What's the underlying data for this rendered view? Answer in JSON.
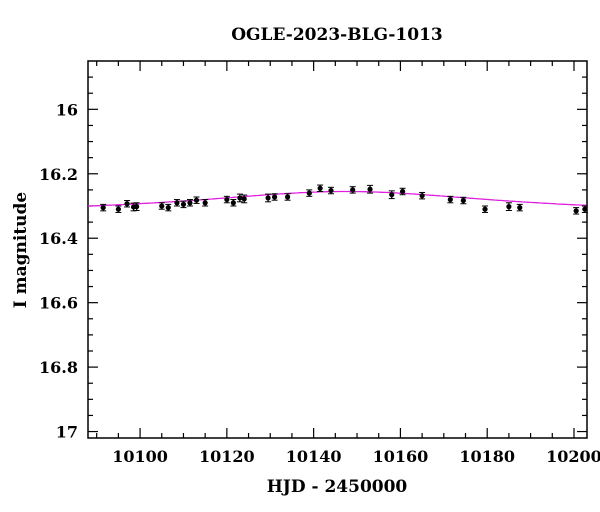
{
  "chart_data": {
    "type": "scatter",
    "title": "OGLE-2023-BLG-1013",
    "xlabel": "HJD - 2450000",
    "ylabel": "I magnitude",
    "xlim": [
      10088,
      10203
    ],
    "ylim": [
      17.02,
      15.85
    ],
    "y_inverted": true,
    "x_ticks": [
      "10100",
      "10120",
      "10140",
      "10160",
      "10180",
      "10200"
    ],
    "y_ticks": [
      "16",
      "16.2",
      "16.4",
      "16.6",
      "16.8",
      "17"
    ],
    "grid": false,
    "model_color": "#e020e0",
    "point_color": "#000000",
    "model": {
      "name": "",
      "type": "microlensing",
      "t0": 10147.5,
      "baseline": 16.325,
      "peak": 16.255,
      "tE": 26
    },
    "series": [
      {
        "name": "",
        "points": [
          {
            "x": 10091.5,
            "y": 16.305,
            "err": 0.01
          },
          {
            "x": 10095.0,
            "y": 16.31,
            "err": 0.01
          },
          {
            "x": 10097.0,
            "y": 16.293,
            "err": 0.01
          },
          {
            "x": 10098.5,
            "y": 16.303,
            "err": 0.012
          },
          {
            "x": 10099.2,
            "y": 16.302,
            "err": 0.012
          },
          {
            "x": 10105.0,
            "y": 16.3,
            "err": 0.01
          },
          {
            "x": 10106.5,
            "y": 16.305,
            "err": 0.01
          },
          {
            "x": 10108.5,
            "y": 16.29,
            "err": 0.01
          },
          {
            "x": 10110.0,
            "y": 16.295,
            "err": 0.01
          },
          {
            "x": 10111.5,
            "y": 16.29,
            "err": 0.01
          },
          {
            "x": 10113.0,
            "y": 16.282,
            "err": 0.01
          },
          {
            "x": 10115.0,
            "y": 16.29,
            "err": 0.01
          },
          {
            "x": 10120.0,
            "y": 16.28,
            "err": 0.01
          },
          {
            "x": 10121.5,
            "y": 16.29,
            "err": 0.01
          },
          {
            "x": 10123.0,
            "y": 16.275,
            "err": 0.012
          },
          {
            "x": 10124.0,
            "y": 16.278,
            "err": 0.012
          },
          {
            "x": 10129.5,
            "y": 16.275,
            "err": 0.012
          },
          {
            "x": 10131.0,
            "y": 16.272,
            "err": 0.01
          },
          {
            "x": 10134.0,
            "y": 16.272,
            "err": 0.01
          },
          {
            "x": 10139.0,
            "y": 16.26,
            "err": 0.01
          },
          {
            "x": 10141.5,
            "y": 16.245,
            "err": 0.01
          },
          {
            "x": 10144.0,
            "y": 16.252,
            "err": 0.01
          },
          {
            "x": 10149.0,
            "y": 16.25,
            "err": 0.01
          },
          {
            "x": 10153.0,
            "y": 16.248,
            "err": 0.012
          },
          {
            "x": 10158.0,
            "y": 16.265,
            "err": 0.012
          },
          {
            "x": 10160.5,
            "y": 16.255,
            "err": 0.01
          },
          {
            "x": 10165.0,
            "y": 16.268,
            "err": 0.01
          },
          {
            "x": 10171.5,
            "y": 16.28,
            "err": 0.01
          },
          {
            "x": 10174.5,
            "y": 16.283,
            "err": 0.01
          },
          {
            "x": 10179.5,
            "y": 16.31,
            "err": 0.01
          },
          {
            "x": 10185.0,
            "y": 16.302,
            "err": 0.012
          },
          {
            "x": 10187.5,
            "y": 16.305,
            "err": 0.01
          },
          {
            "x": 10200.5,
            "y": 16.315,
            "err": 0.01
          },
          {
            "x": 10202.5,
            "y": 16.31,
            "err": 0.01
          }
        ]
      }
    ]
  }
}
